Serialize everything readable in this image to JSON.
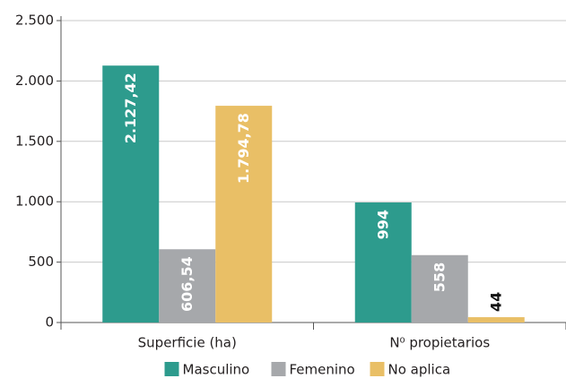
{
  "chart_data": {
    "type": "bar",
    "categories": [
      "Superficie (ha)",
      "N⁰ propietarios"
    ],
    "series": [
      {
        "name": "Masculino",
        "color": "#2d9b8d",
        "values": [
          2127.42,
          994
        ],
        "value_labels": [
          "2.127,42",
          "994"
        ]
      },
      {
        "name": "Femenino",
        "color": "#a6a8ab",
        "values": [
          606.54,
          558
        ],
        "value_labels": [
          "606,54",
          "558"
        ]
      },
      {
        "name": "No aplica",
        "color": "#e9bf66",
        "values": [
          1794.78,
          44
        ],
        "value_labels": [
          "1.794,78",
          "44"
        ]
      }
    ],
    "ylim": [
      0,
      2500
    ],
    "yticks": [
      0,
      500,
      {
        "value": 1000,
        "label": "1.000"
      },
      {
        "value": 1500,
        "label": "1.500"
      },
      {
        "value": 2000,
        "label": "2.000"
      },
      {
        "value": 2500,
        "label": "2.500"
      }
    ],
    "grid": true,
    "legend": "bottom"
  }
}
